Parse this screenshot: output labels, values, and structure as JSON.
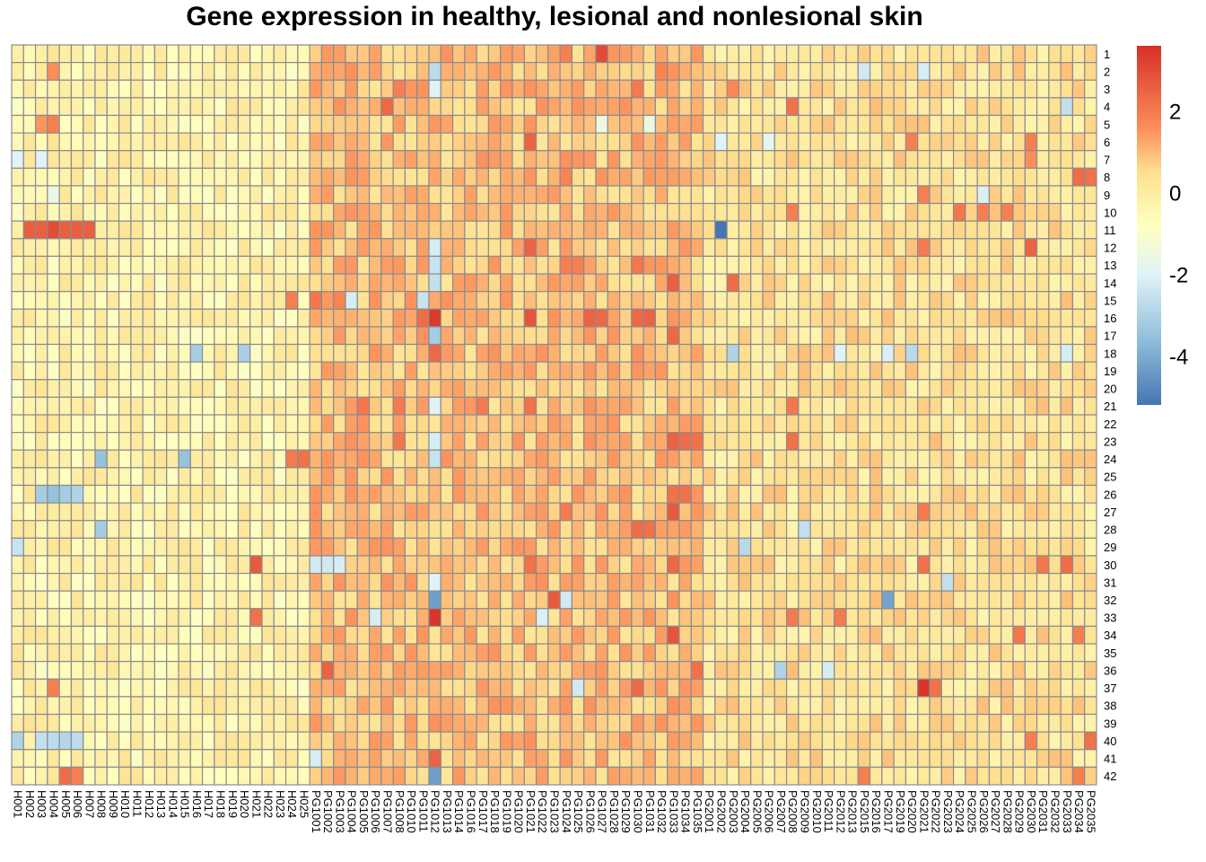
{
  "chart_data": {
    "type": "heatmap",
    "title": "Gene expression in healthy, lesional and nonlesional skin",
    "columns": [
      "H001",
      "H002",
      "H003",
      "H004",
      "H005",
      "H006",
      "H007",
      "H008",
      "H009",
      "H010",
      "H011",
      "H012",
      "H013",
      "H014",
      "H015",
      "H016",
      "H017",
      "H018",
      "H019",
      "H020",
      "H021",
      "H022",
      "H023",
      "H024",
      "H025",
      "PG1001",
      "PG1002",
      "PG1003",
      "PG1004",
      "PG1005",
      "PG1006",
      "PG1007",
      "PG1008",
      "PG1010",
      "PG1011",
      "PG1012",
      "PG1013",
      "PG1014",
      "PG1016",
      "PG1017",
      "PG1018",
      "PG1019",
      "PG1020",
      "PG1021",
      "PG1022",
      "PG1023",
      "PG1024",
      "PG1025",
      "PG1026",
      "PG1027",
      "PG1028",
      "PG1029",
      "PG1030",
      "PG1031",
      "PG1032",
      "PG1033",
      "PG1034",
      "PG1035",
      "PG2001",
      "PG2002",
      "PG2003",
      "PG2004",
      "PG2005",
      "PG2006",
      "PG2007",
      "PG2008",
      "PG2009",
      "PG2010",
      "PG2011",
      "PG2012",
      "PG2013",
      "PG2015",
      "PG2016",
      "PG2017",
      "PG2019",
      "PG2020",
      "PG2021",
      "PG2022",
      "PG2023",
      "PG2024",
      "PG2025",
      "PG2026",
      "PG2027",
      "PG2028",
      "PG2029",
      "PG2030",
      "PG2031",
      "PG2032",
      "PG2033",
      "PG2034",
      "PG2035"
    ],
    "rows": [
      "1",
      "2",
      "3",
      "4",
      "5",
      "6",
      "7",
      "8",
      "9",
      "10",
      "11",
      "12",
      "13",
      "14",
      "15",
      "16",
      "17",
      "18",
      "19",
      "20",
      "21",
      "22",
      "23",
      "24",
      "25",
      "26",
      "27",
      "28",
      "29",
      "30",
      "31",
      "32",
      "33",
      "34",
      "35",
      "36",
      "37",
      "38",
      "39",
      "40",
      "41",
      "42"
    ],
    "colorscale": {
      "range": [
        -5.2,
        3.6
      ],
      "stops": [
        [
          -5.2,
          "#4575b4"
        ],
        [
          -3.6,
          "#91bfdb"
        ],
        [
          -2.0,
          "#e0f3f8"
        ],
        [
          -0.8,
          "#ffffbf"
        ],
        [
          0.5,
          "#fee090"
        ],
        [
          1.6,
          "#fc8d59"
        ],
        [
          3.6,
          "#d73027"
        ]
      ],
      "ticks": [
        2,
        0,
        -2,
        -4
      ]
    },
    "values": [],
    "overrides": [
      [
        0,
        46,
        1.9
      ],
      [
        0,
        49,
        3.0
      ],
      [
        0,
        48,
        1.3
      ],
      [
        0,
        50,
        1.5
      ],
      [
        0,
        51,
        1.4
      ],
      [
        0,
        54,
        1.3
      ],
      [
        1,
        35,
        -2.7
      ],
      [
        1,
        3,
        1.6
      ],
      [
        1,
        54,
        1.8
      ],
      [
        1,
        71,
        -2.3
      ],
      [
        1,
        76,
        -2.2
      ],
      [
        2,
        32,
        1.9
      ],
      [
        2,
        52,
        2.0
      ],
      [
        2,
        60,
        1.7
      ],
      [
        2,
        35,
        -2.0
      ],
      [
        3,
        31,
        2.4
      ],
      [
        3,
        65,
        2.2
      ],
      [
        3,
        88,
        -2.6
      ],
      [
        4,
        3,
        1.9
      ],
      [
        4,
        2,
        1.5
      ],
      [
        4,
        49,
        -1.5
      ],
      [
        4,
        53,
        -1.5
      ],
      [
        5,
        43,
        2.5
      ],
      [
        5,
        75,
        1.9
      ],
      [
        5,
        85,
        1.9
      ],
      [
        5,
        59,
        -2.0
      ],
      [
        5,
        63,
        -1.8
      ],
      [
        6,
        2,
        -2.0
      ],
      [
        6,
        0,
        -2.0
      ],
      [
        6,
        85,
        1.6
      ],
      [
        7,
        89,
        2.3
      ],
      [
        7,
        90,
        2.2
      ],
      [
        7,
        46,
        1.8
      ],
      [
        8,
        76,
        1.9
      ],
      [
        8,
        81,
        -2.1
      ],
      [
        8,
        3,
        -1.6
      ],
      [
        9,
        83,
        1.9
      ],
      [
        9,
        81,
        1.9
      ],
      [
        9,
        79,
        2.1
      ],
      [
        9,
        65,
        1.9
      ],
      [
        10,
        1,
        2.6
      ],
      [
        10,
        2,
        2.6
      ],
      [
        10,
        3,
        3.0
      ],
      [
        10,
        4,
        2.6
      ],
      [
        10,
        5,
        2.6
      ],
      [
        10,
        6,
        2.6
      ],
      [
        10,
        59,
        -5.2
      ],
      [
        11,
        43,
        2.5
      ],
      [
        11,
        85,
        2.5
      ],
      [
        11,
        76,
        2.0
      ],
      [
        11,
        35,
        -2.2
      ],
      [
        12,
        52,
        2.1
      ],
      [
        12,
        47,
        1.9
      ],
      [
        12,
        46,
        1.9
      ],
      [
        12,
        35,
        -2.5
      ],
      [
        13,
        55,
        2.6
      ],
      [
        13,
        60,
        2.3
      ],
      [
        13,
        35,
        -2.6
      ],
      [
        14,
        34,
        -2.5
      ],
      [
        14,
        25,
        2.1
      ],
      [
        14,
        27,
        1.8
      ],
      [
        14,
        28,
        -2.2
      ],
      [
        14,
        23,
        1.9
      ],
      [
        15,
        35,
        3.4
      ],
      [
        15,
        43,
        2.8
      ],
      [
        15,
        48,
        2.5
      ],
      [
        15,
        49,
        2.4
      ],
      [
        15,
        52,
        2.4
      ],
      [
        15,
        53,
        2.5
      ],
      [
        15,
        34,
        2.3
      ],
      [
        16,
        35,
        -3.2
      ],
      [
        16,
        55,
        2.4
      ],
      [
        17,
        15,
        -3.2
      ],
      [
        17,
        19,
        -3.1
      ],
      [
        17,
        35,
        2.4
      ],
      [
        17,
        60,
        -3.0
      ],
      [
        17,
        75,
        -2.8
      ],
      [
        17,
        88,
        -2.2
      ],
      [
        17,
        73,
        -2.1
      ],
      [
        17,
        69,
        -2.0
      ],
      [
        20,
        29,
        2.1
      ],
      [
        20,
        32,
        2.0
      ],
      [
        20,
        39,
        2.0
      ],
      [
        20,
        43,
        2.2
      ],
      [
        20,
        65,
        2.1
      ],
      [
        20,
        35,
        -2.0
      ],
      [
        22,
        32,
        2.1
      ],
      [
        22,
        55,
        2.5
      ],
      [
        22,
        56,
        2.3
      ],
      [
        22,
        57,
        2.2
      ],
      [
        22,
        65,
        2.2
      ],
      [
        22,
        35,
        -2.2
      ],
      [
        23,
        7,
        -3.5
      ],
      [
        23,
        14,
        -3.5
      ],
      [
        23,
        24,
        2.2
      ],
      [
        23,
        23,
        2.0
      ],
      [
        23,
        35,
        -2.5
      ],
      [
        25,
        2,
        -3.2
      ],
      [
        25,
        3,
        -3.5
      ],
      [
        25,
        4,
        -3.2
      ],
      [
        25,
        5,
        -3.0
      ],
      [
        25,
        56,
        2.2
      ],
      [
        25,
        55,
        2.2
      ],
      [
        26,
        55,
        2.7
      ],
      [
        26,
        46,
        2.0
      ],
      [
        26,
        76,
        2.0
      ],
      [
        27,
        7,
        -3.2
      ],
      [
        27,
        52,
        2.3
      ],
      [
        27,
        53,
        2.2
      ],
      [
        27,
        66,
        -2.6
      ],
      [
        28,
        61,
        -2.8
      ],
      [
        28,
        0,
        -2.5
      ],
      [
        29,
        20,
        2.7
      ],
      [
        29,
        25,
        -2.3
      ],
      [
        29,
        26,
        -2.3
      ],
      [
        29,
        27,
        -2.2
      ],
      [
        29,
        43,
        2.2
      ],
      [
        29,
        55,
        2.4
      ],
      [
        29,
        76,
        2.2
      ],
      [
        29,
        88,
        2.3
      ],
      [
        29,
        86,
        2.1
      ],
      [
        30,
        78,
        -2.6
      ],
      [
        30,
        35,
        -2.0
      ],
      [
        31,
        35,
        -4.3
      ],
      [
        31,
        45,
        2.7
      ],
      [
        31,
        73,
        -4.2
      ],
      [
        31,
        46,
        -2.3
      ],
      [
        32,
        35,
        3.5
      ],
      [
        32,
        30,
        -2.2
      ],
      [
        32,
        65,
        2.0
      ],
      [
        32,
        69,
        2.0
      ],
      [
        32,
        20,
        2.2
      ],
      [
        32,
        44,
        -2.1
      ],
      [
        33,
        55,
        2.8
      ],
      [
        33,
        89,
        1.9
      ],
      [
        33,
        84,
        2.1
      ],
      [
        35,
        26,
        2.5
      ],
      [
        35,
        57,
        2.2
      ],
      [
        35,
        64,
        -3.0
      ],
      [
        35,
        68,
        -2.2
      ],
      [
        36,
        76,
        3.5
      ],
      [
        36,
        77,
        2.2
      ],
      [
        36,
        52,
        2.4
      ],
      [
        36,
        47,
        -2.3
      ],
      [
        36,
        3,
        1.9
      ],
      [
        39,
        0,
        -3.0
      ],
      [
        39,
        2,
        -2.6
      ],
      [
        39,
        3,
        -2.7
      ],
      [
        39,
        4,
        -2.9
      ],
      [
        39,
        5,
        -2.7
      ],
      [
        39,
        90,
        2.2
      ],
      [
        39,
        85,
        1.9
      ],
      [
        40,
        35,
        2.5
      ],
      [
        40,
        25,
        -2.2
      ],
      [
        41,
        35,
        -4.3
      ],
      [
        41,
        5,
        1.9
      ],
      [
        41,
        4,
        2.3
      ],
      [
        41,
        89,
        1.9
      ],
      [
        41,
        71,
        1.9
      ]
    ]
  }
}
